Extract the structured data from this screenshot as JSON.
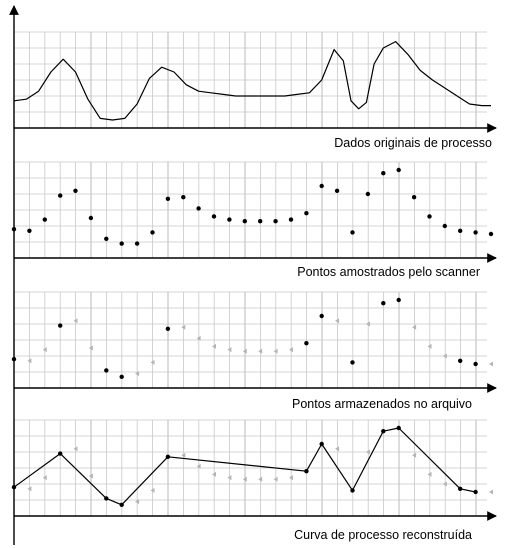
{
  "chart_data": [
    {
      "type": "line",
      "title": "Dados originais de processo",
      "grid": true,
      "xlim": [
        0,
        31
      ],
      "ylim": [
        0,
        6
      ],
      "series": [
        {
          "x": [
            0,
            0.8,
            1.6,
            2.4,
            3.2,
            4.0,
            4.8,
            5.6,
            6.4,
            7.2,
            8.0,
            8.8,
            9.6,
            10.4,
            11.2,
            12.0,
            12.8,
            13.6,
            14.4,
            15.2,
            16.0,
            16.8,
            17.6,
            18.4,
            19.2,
            20.0,
            20.8,
            21.4,
            21.9,
            22.4,
            22.9,
            23.4,
            24.0,
            24.8,
            25.6,
            26.4,
            27.2,
            28.0,
            28.8,
            29.6,
            30.4,
            31.0
          ],
          "values": [
            1.7,
            1.8,
            2.3,
            3.5,
            4.3,
            3.5,
            1.8,
            0.6,
            0.5,
            0.6,
            1.5,
            3.1,
            3.8,
            3.5,
            2.7,
            2.3,
            2.2,
            2.1,
            2.0,
            2.0,
            2.0,
            2.0,
            2.0,
            2.1,
            2.2,
            3.0,
            4.9,
            4.2,
            1.7,
            1.2,
            1.6,
            4.0,
            5.0,
            5.4,
            4.6,
            3.6,
            3.0,
            2.5,
            2.0,
            1.5,
            1.4,
            1.4
          ]
        }
      ]
    },
    {
      "type": "scatter",
      "title": "Pontos amostrados pelo scanner",
      "grid": true,
      "xlim": [
        0,
        31
      ],
      "ylim": [
        0,
        6
      ],
      "series": [
        {
          "x": [
            0,
            1,
            2,
            3,
            4,
            5,
            6,
            7,
            8,
            9,
            10,
            11,
            12,
            13,
            14,
            15,
            16,
            17,
            18,
            19,
            20,
            21,
            22,
            23,
            24,
            25,
            26,
            27,
            28,
            29,
            30,
            31
          ],
          "values": [
            1.8,
            1.7,
            2.4,
            3.9,
            4.2,
            2.5,
            1.2,
            0.9,
            0.9,
            1.6,
            3.7,
            3.8,
            3.1,
            2.6,
            2.4,
            2.3,
            2.3,
            2.3,
            2.4,
            2.8,
            4.5,
            4.2,
            1.6,
            4.0,
            5.3,
            5.5,
            3.8,
            2.6,
            2.0,
            1.7,
            1.6,
            1.5
          ]
        }
      ]
    },
    {
      "type": "scatter",
      "title": "Pontos armazenados no arquivo",
      "grid": true,
      "xlim": [
        0,
        31
      ],
      "ylim": [
        0,
        6
      ],
      "series": [
        {
          "x": [
            0,
            3,
            6,
            7,
            10,
            19,
            20,
            22,
            24,
            25,
            29,
            30
          ],
          "values": [
            1.8,
            3.9,
            1.1,
            0.7,
            3.7,
            2.8,
            4.5,
            1.6,
            5.3,
            5.5,
            1.7,
            1.5
          ]
        },
        {
          "x": [
            1,
            2,
            4,
            5,
            8,
            9,
            11,
            12,
            13,
            14,
            15,
            16,
            17,
            18,
            21,
            23,
            26,
            27,
            28,
            31
          ],
          "values": [
            1.7,
            2.4,
            4.2,
            2.5,
            0.9,
            1.6,
            3.8,
            3.1,
            2.6,
            2.4,
            2.3,
            2.3,
            2.3,
            2.4,
            4.2,
            4.0,
            3.8,
            2.6,
            2.0,
            1.5
          ]
        }
      ]
    },
    {
      "type": "line",
      "title": "Curva de processo reconstruída",
      "grid": true,
      "xlim": [
        0,
        31
      ],
      "ylim": [
        0,
        6
      ],
      "series": [
        {
          "x": [
            0,
            3,
            6,
            7,
            10,
            19,
            20,
            22,
            24,
            25,
            29,
            30
          ],
          "values": [
            1.8,
            3.9,
            1.1,
            0.7,
            3.7,
            2.8,
            4.5,
            1.6,
            5.3,
            5.5,
            1.7,
            1.5
          ]
        },
        {
          "x": [
            1,
            2,
            4,
            5,
            8,
            9,
            11,
            12,
            13,
            14,
            15,
            16,
            17,
            18,
            21,
            23,
            26,
            27,
            28,
            31
          ],
          "values": [
            1.7,
            2.4,
            4.2,
            2.5,
            0.9,
            1.6,
            3.8,
            3.1,
            2.6,
            2.4,
            2.3,
            2.3,
            2.3,
            2.4,
            4.2,
            4.0,
            3.8,
            2.6,
            2.0,
            1.5
          ]
        }
      ]
    }
  ],
  "colors": {
    "axis": "#000000",
    "grid": "#c8c8c8",
    "curve": "#000000",
    "point": "#000000",
    "faded_point": "#b4b4b4"
  }
}
